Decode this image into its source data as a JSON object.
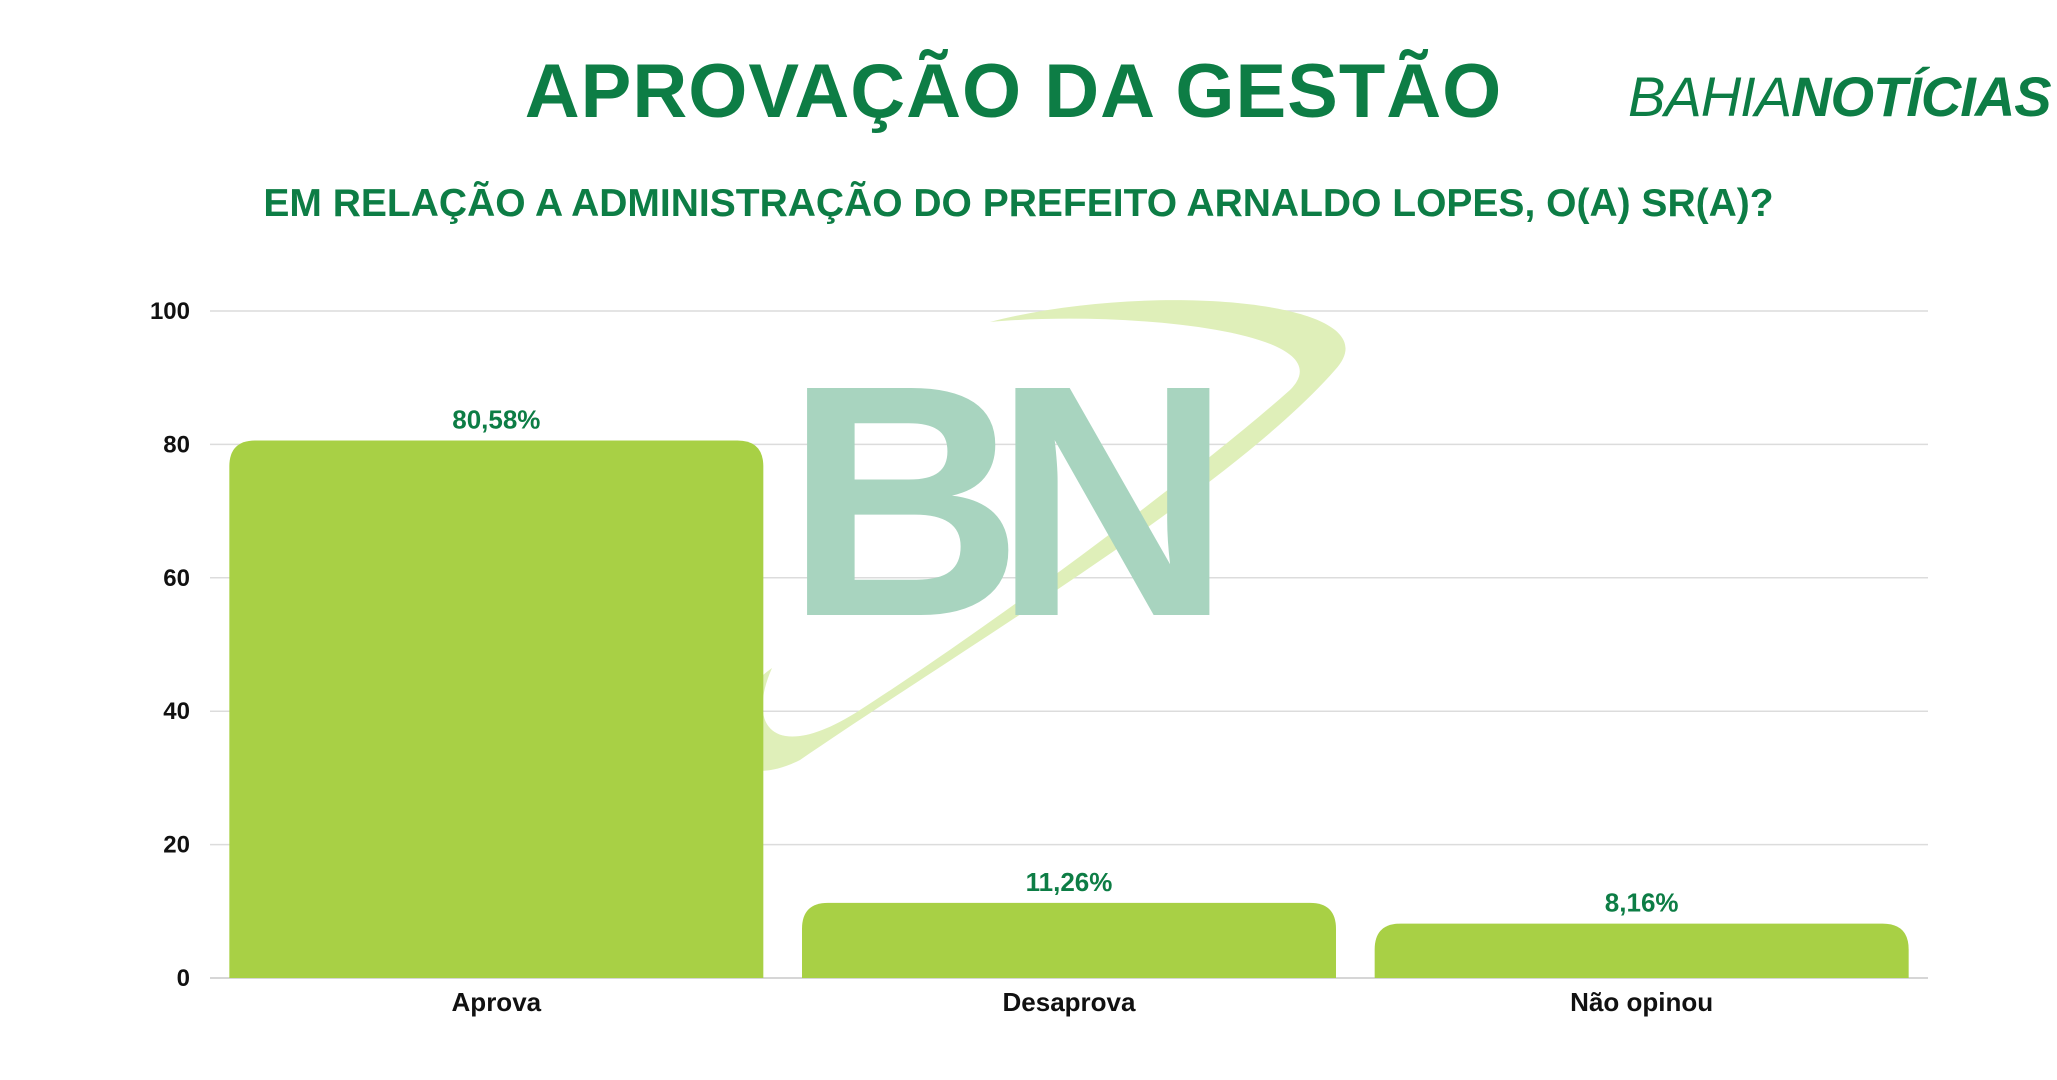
{
  "header": {
    "title": "APROVAÇÃO DA GESTÃO",
    "subtitle": "EM RELAÇÃO A ADMINISTRAÇÃO DO PREFEITO ARNALDO LOPES, O(A) SR(A)?",
    "brand_light": "BAHIA",
    "brand_bold": "NOTÍCIAS"
  },
  "watermark": {
    "text": "BN"
  },
  "colors": {
    "title": "#0d7d45",
    "bar": "#a8d045",
    "data_label": "#0d7d45",
    "grid": "#dcdcdc",
    "watermark_letters": "#a8d4bf",
    "watermark_swoosh": "#dfefb9"
  },
  "chart_data": {
    "type": "bar",
    "categories": [
      "Aprova",
      "Desaprova",
      "Não opinou"
    ],
    "values": [
      80.58,
      11.26,
      8.16
    ],
    "data_labels": [
      "80,58%",
      "11,26%",
      "8,16%"
    ],
    "title": "APROVAÇÃO DA GESTÃO",
    "subtitle": "EM RELAÇÃO A ADMINISTRAÇÃO DO PREFEITO ARNALDO LOPES, O(A) SR(A)?",
    "xlabel": "",
    "ylabel": "",
    "ylim": [
      0,
      100
    ],
    "yticks": [
      0,
      20,
      40,
      60,
      80,
      100
    ],
    "grid": true,
    "legend": "none"
  }
}
